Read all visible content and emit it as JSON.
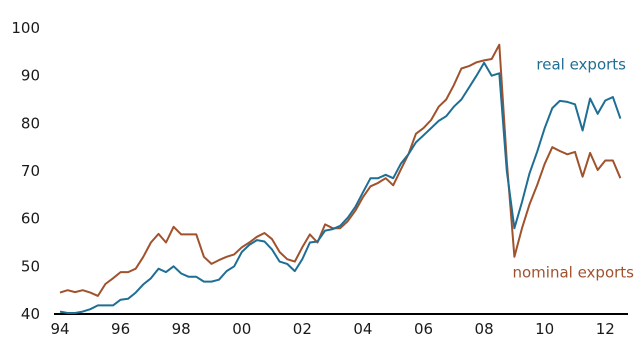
{
  "colors": {
    "real": "#1f6e94",
    "nominal": "#a0522d",
    "axis": "#000000",
    "text": "#1a1a1a"
  },
  "chart_data": {
    "type": "line",
    "title": "",
    "xlabel": "",
    "ylabel": "",
    "grid": false,
    "legend": "direct labels at right of series",
    "xlim": [
      1994,
      2012.75
    ],
    "ylim": [
      40,
      100
    ],
    "x_ticks": [
      {
        "value": 1994,
        "label": "94"
      },
      {
        "value": 1996,
        "label": "96"
      },
      {
        "value": 1998,
        "label": "98"
      },
      {
        "value": 2000,
        "label": "00"
      },
      {
        "value": 2002,
        "label": "02"
      },
      {
        "value": 2004,
        "label": "04"
      },
      {
        "value": 2006,
        "label": "06"
      },
      {
        "value": 2008,
        "label": "08"
      },
      {
        "value": 2010,
        "label": "10"
      },
      {
        "value": 2012,
        "label": "12"
      }
    ],
    "y_ticks": [
      {
        "value": 40,
        "label": "40"
      },
      {
        "value": 50,
        "label": "50"
      },
      {
        "value": 60,
        "label": "60"
      },
      {
        "value": 70,
        "label": "70"
      },
      {
        "value": 80,
        "label": "80"
      },
      {
        "value": 90,
        "label": "90"
      },
      {
        "value": 100,
        "label": "100"
      }
    ],
    "x": [
      1994.0,
      1994.25,
      1994.5,
      1994.75,
      1995.0,
      1995.25,
      1995.5,
      1995.75,
      1996.0,
      1996.25,
      1996.5,
      1996.75,
      1997.0,
      1997.25,
      1997.5,
      1997.75,
      1998.0,
      1998.25,
      1998.5,
      1998.75,
      1999.0,
      1999.25,
      1999.5,
      1999.75,
      2000.0,
      2000.25,
      2000.5,
      2000.75,
      2001.0,
      2001.25,
      2001.5,
      2001.75,
      2002.0,
      2002.25,
      2002.5,
      2002.75,
      2003.0,
      2003.25,
      2003.5,
      2003.75,
      2004.0,
      2004.25,
      2004.5,
      2004.75,
      2005.0,
      2005.25,
      2005.5,
      2005.75,
      2006.0,
      2006.25,
      2006.5,
      2006.75,
      2007.0,
      2007.25,
      2007.5,
      2007.75,
      2008.0,
      2008.25,
      2008.5,
      2008.75,
      2009.0,
      2009.25,
      2009.5,
      2009.75,
      2010.0,
      2010.25,
      2010.5,
      2010.75,
      2011.0,
      2011.25,
      2011.5,
      2011.75,
      2012.0,
      2012.25,
      2012.5
    ],
    "series": [
      {
        "name": "real exports",
        "color": "#1f6e94",
        "values": [
          40.5,
          40.2,
          40.2,
          40.5,
          41.0,
          41.8,
          41.8,
          41.8,
          43.0,
          43.2,
          44.5,
          46.2,
          47.5,
          49.5,
          48.8,
          50.0,
          48.5,
          47.8,
          47.8,
          46.8,
          46.8,
          47.2,
          49.0,
          50.0,
          53.0,
          54.5,
          55.5,
          55.2,
          53.5,
          51.0,
          50.5,
          49.0,
          51.5,
          55.0,
          55.2,
          57.5,
          57.8,
          58.5,
          60.2,
          62.5,
          65.5,
          68.5,
          68.5,
          69.2,
          68.5,
          71.5,
          73.5,
          76.0,
          77.5,
          79.0,
          80.5,
          81.5,
          83.5,
          85.0,
          87.5,
          90.0,
          92.7,
          90.0,
          90.5,
          70.0,
          58.0,
          63.5,
          69.5,
          74.0,
          79.0,
          83.2,
          84.7,
          84.5,
          84.0,
          78.5,
          85.2,
          82.0,
          84.8,
          85.5,
          81.0
        ]
      },
      {
        "name": "nominal exports",
        "color": "#a0522d",
        "values": [
          44.5,
          45.0,
          44.6,
          45.0,
          44.5,
          43.8,
          46.3,
          47.5,
          48.8,
          48.8,
          49.5,
          52.0,
          55.0,
          56.8,
          55.0,
          58.3,
          56.7,
          56.7,
          56.7,
          52.0,
          50.5,
          51.3,
          52.0,
          52.5,
          54.0,
          55.0,
          56.2,
          57.0,
          55.7,
          53.0,
          51.5,
          51.0,
          54.0,
          56.7,
          55.0,
          58.8,
          58.0,
          58.0,
          59.5,
          61.7,
          64.5,
          66.8,
          67.5,
          68.5,
          67.0,
          70.3,
          73.5,
          77.8,
          79.0,
          80.7,
          83.5,
          85.0,
          88.0,
          91.5,
          92.0,
          92.8,
          93.2,
          93.5,
          96.5,
          72.0,
          52.0,
          58.0,
          63.0,
          67.0,
          71.5,
          75.0,
          74.2,
          73.5,
          74.0,
          68.8,
          73.8,
          70.2,
          72.2,
          72.2,
          68.5
        ]
      }
    ]
  }
}
